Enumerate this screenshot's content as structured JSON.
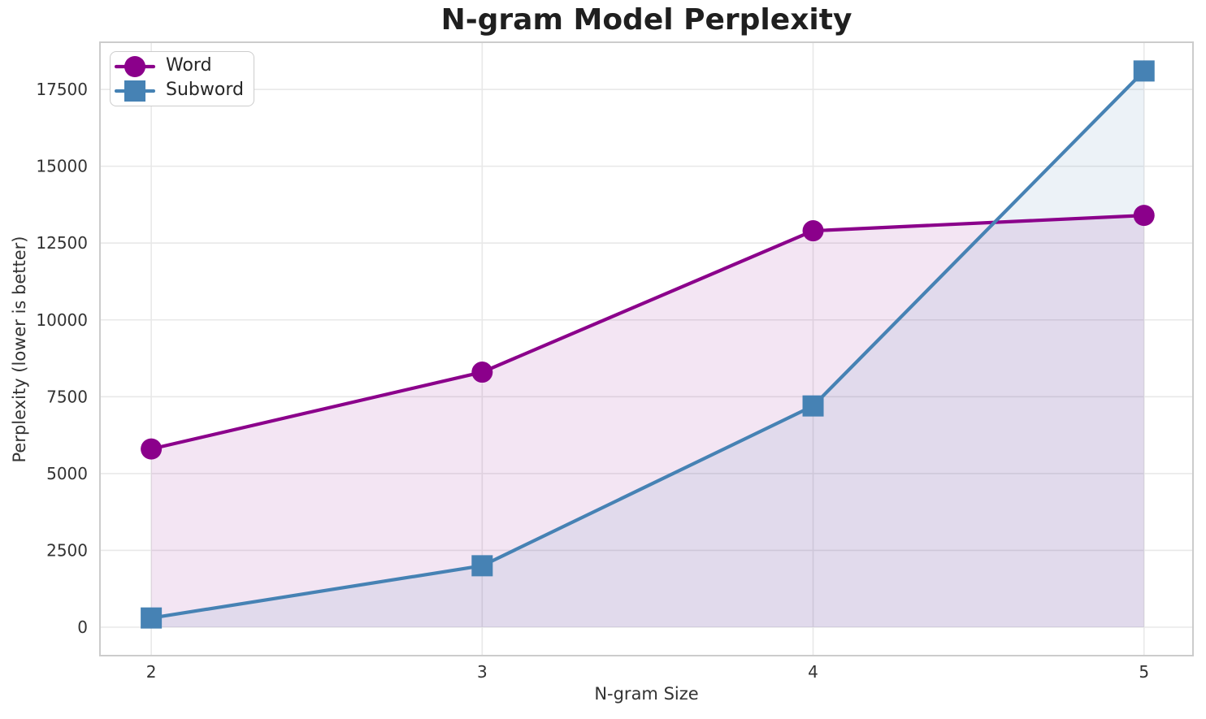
{
  "chart_data": {
    "type": "line",
    "title": "N-gram Model Perplexity",
    "xlabel": "N-gram Size",
    "ylabel": "Perplexity (lower is better)",
    "x": [
      2,
      3,
      4,
      5
    ],
    "series": [
      {
        "name": "Word",
        "marker": "circle",
        "color": "#8B008B",
        "values": [
          5800,
          8300,
          12900,
          13400
        ]
      },
      {
        "name": "Subword",
        "marker": "square",
        "color": "#4682B4",
        "values": [
          300,
          2000,
          7200,
          18100
        ]
      }
    ],
    "xticks": [
      "2",
      "3",
      "4",
      "5"
    ],
    "xtick_values": [
      2,
      3,
      4,
      5
    ],
    "yticks": [
      "0",
      "2500",
      "5000",
      "7500",
      "10000",
      "12500",
      "15000",
      "17500"
    ],
    "ytick_values": [
      0,
      2500,
      5000,
      7500,
      10000,
      12500,
      15000,
      17500
    ],
    "xlim": [
      1.845,
      5.148
    ],
    "ylim": [
      -925,
      19035
    ],
    "grid": true,
    "fill_to_zero": true,
    "fill_alpha": 0.1,
    "legend_position": "upper-left",
    "legend_entries": [
      "Word",
      "Subword"
    ],
    "style": {
      "grid_color": "#e8e8e8",
      "spine_color": "#cccccc",
      "tick_color": "#333333",
      "title_color": "#1f1f1f",
      "background": "#ffffff",
      "line_width": 4.2,
      "marker_radius": 13
    }
  }
}
